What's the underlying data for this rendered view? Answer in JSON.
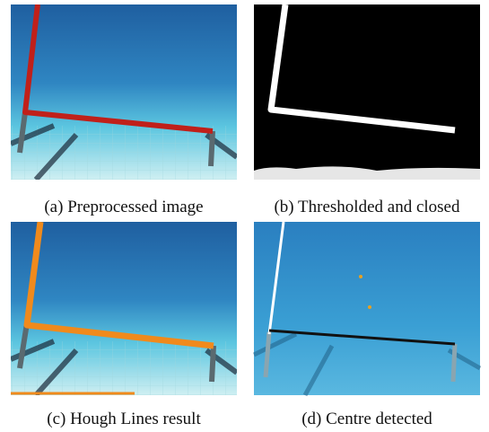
{
  "figure": {
    "panels": [
      {
        "caption": "(a) Preprocessed image"
      },
      {
        "caption": "(b) Thresholded and closed"
      },
      {
        "caption": "(c) Hough Lines result"
      },
      {
        "caption": "(d) Centre detected"
      }
    ]
  }
}
